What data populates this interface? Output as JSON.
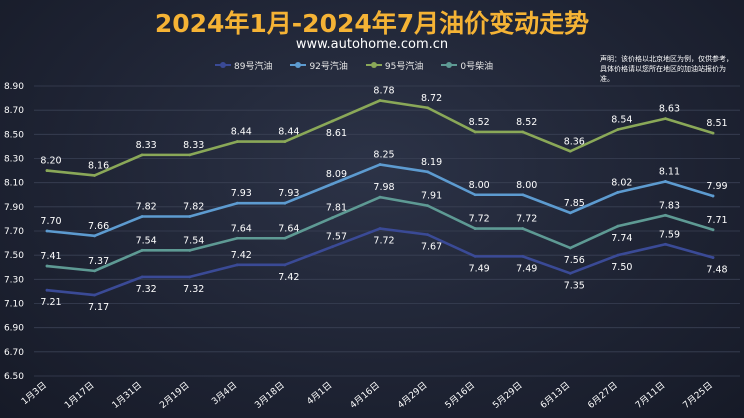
{
  "header": {
    "title": "2024年1月-2024年7月油价变动走势",
    "subtitle": "www.autohome.com.cn",
    "note": "声明：该价格以北京地区为例，仅供参考，具体价格请以您所在地区的加油站报价为准。"
  },
  "colors": {
    "series_89": "#3a4a96",
    "series_92": "#5d9bd0",
    "series_95": "#8aa858",
    "series_0": "#5e9a94",
    "grid": "#3a4154",
    "axis_text": "#ffffff",
    "title": "#f5b335"
  },
  "chart_data": {
    "type": "line",
    "title": "2024年1月-2024年7月油价变动走势",
    "xlabel": "",
    "ylabel": "",
    "ylim": [
      6.5,
      8.9
    ],
    "yticks": [
      "6.50",
      "6.70",
      "6.90",
      "7.10",
      "7.30",
      "7.50",
      "7.70",
      "7.90",
      "8.10",
      "8.30",
      "8.50",
      "8.70",
      "8.90"
    ],
    "grid": true,
    "legend_position": "top",
    "categories": [
      "1月3日",
      "1月17日",
      "1月31日",
      "2月19日",
      "3月4日",
      "3月18日",
      "4月1日",
      "4月16日",
      "4月29日",
      "5月16日",
      "5月29日",
      "6月13日",
      "6月27日",
      "7月11日",
      "7月25日"
    ],
    "series": [
      {
        "name": "89号汽油",
        "values": [
          7.21,
          7.17,
          7.32,
          7.32,
          7.42,
          7.42,
          7.57,
          7.72,
          7.67,
          7.49,
          7.49,
          7.35,
          7.5,
          7.59,
          7.48
        ],
        "labels": [
          "7.21",
          "7.17",
          "7.32",
          "7.32",
          "7.42",
          "7.42",
          "7.57",
          "7.72",
          "7.67",
          "7.49",
          "7.49",
          "7.35",
          "7.50",
          "7.59",
          "7.48"
        ]
      },
      {
        "name": "92号汽油",
        "values": [
          7.7,
          7.66,
          7.82,
          7.82,
          7.93,
          7.93,
          8.09,
          8.25,
          8.19,
          8.0,
          8.0,
          7.85,
          8.02,
          8.11,
          7.99
        ],
        "labels": [
          "7.70",
          "7.66",
          "7.82",
          "7.82",
          "7.93",
          "7.93",
          "8.09",
          "8.25",
          "8.19",
          "8.00",
          "8.00",
          "7.85",
          "8.02",
          "8.11",
          "7.99"
        ]
      },
      {
        "name": "95号汽油",
        "values": [
          8.2,
          8.16,
          8.33,
          8.33,
          8.44,
          8.44,
          8.61,
          8.78,
          8.72,
          8.52,
          8.52,
          8.36,
          8.54,
          8.63,
          8.51
        ],
        "labels": [
          "8.20",
          "8.16",
          "8.33",
          "8.33",
          "8.44",
          "8.44",
          "8.61",
          "8.78",
          "8.72",
          "8.52",
          "8.52",
          "8.36",
          "8.54",
          "8.63",
          "8.51"
        ]
      },
      {
        "name": "0号柴油",
        "values": [
          7.41,
          7.37,
          7.54,
          7.54,
          7.64,
          7.64,
          7.81,
          7.98,
          7.91,
          7.72,
          7.72,
          7.56,
          7.74,
          7.83,
          7.71
        ],
        "labels": [
          "7.41",
          "7.37",
          "7.54",
          "7.54",
          "7.64",
          "7.64",
          "7.81",
          "7.98",
          "7.91",
          "7.72",
          "7.72",
          "7.56",
          "7.74",
          "7.83",
          "7.71"
        ]
      }
    ]
  }
}
